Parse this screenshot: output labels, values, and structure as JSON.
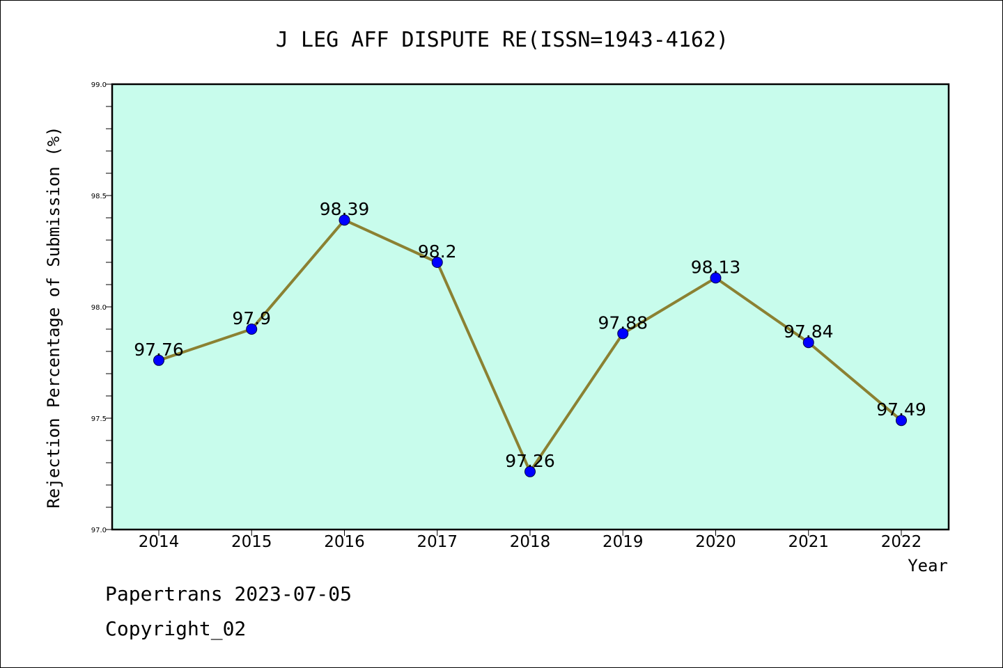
{
  "chart_data": {
    "type": "line",
    "title": "J LEG AFF DISPUTE RE(ISSN=1943-4162)",
    "xlabel": "Year",
    "ylabel": "Rejection Percentage of Submission (%)",
    "categories": [
      "2014",
      "2015",
      "2016",
      "2017",
      "2018",
      "2019",
      "2020",
      "2021",
      "2022"
    ],
    "series": [
      {
        "values": [
          97.76,
          97.9,
          98.39,
          98.2,
          97.26,
          97.88,
          98.13,
          97.84,
          97.49
        ],
        "data_labels": [
          "97.76",
          "97.9",
          "98.39",
          "98.2",
          "97.26",
          "97.88",
          "98.13",
          "97.84",
          "97.49"
        ]
      }
    ],
    "ylim": [
      97.0,
      99.0
    ],
    "yticks": [
      "97.0",
      "97.5",
      "98.0",
      "98.5",
      "99.0"
    ],
    "grid": false,
    "legend": "none",
    "colors": {
      "plot_background": "#c8fcec",
      "line": "#8b8132",
      "marker": "#0000ff"
    }
  },
  "footer": {
    "line1": "Papertrans 2023-07-05",
    "line2": "Copyright_02"
  }
}
